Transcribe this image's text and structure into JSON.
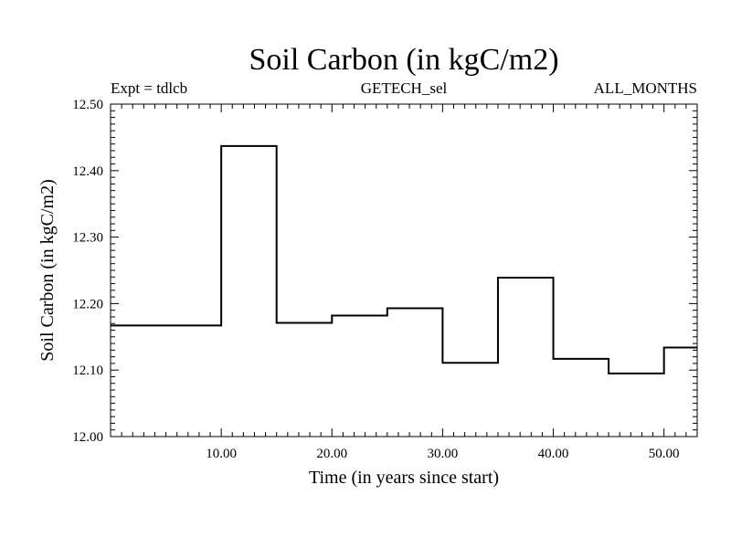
{
  "chart_data": {
    "type": "line",
    "title": "Soil Carbon (in kgC/m2)",
    "subtitle_left": "Expt = tdlcb",
    "subtitle_center": "GETECH_sel",
    "subtitle_right": "ALL_MONTHS",
    "xlabel": "Time (in years since start)",
    "ylabel": "Soil Carbon (in kgC/m2)",
    "xlim": [
      0,
      53
    ],
    "ylim": [
      12.0,
      12.5
    ],
    "grid": false,
    "xticks": [
      10,
      20,
      30,
      40,
      50
    ],
    "xtick_labels": [
      "10.00",
      "20.00",
      "30.00",
      "40.00",
      "50.00"
    ],
    "yticks": [
      12.0,
      12.1,
      12.2,
      12.3,
      12.4,
      12.5
    ],
    "ytick_labels": [
      "12.00",
      "12.10",
      "12.20",
      "12.30",
      "12.40",
      "12.50"
    ],
    "series": [
      {
        "color": "#000000",
        "x": [
          0,
          5,
          10,
          15,
          20,
          25,
          30,
          35,
          40,
          45,
          50,
          53
        ],
        "y": [
          12.167,
          12.167,
          12.437,
          12.171,
          12.182,
          12.193,
          12.111,
          12.239,
          12.117,
          12.095,
          12.134,
          12.134
        ]
      }
    ]
  }
}
